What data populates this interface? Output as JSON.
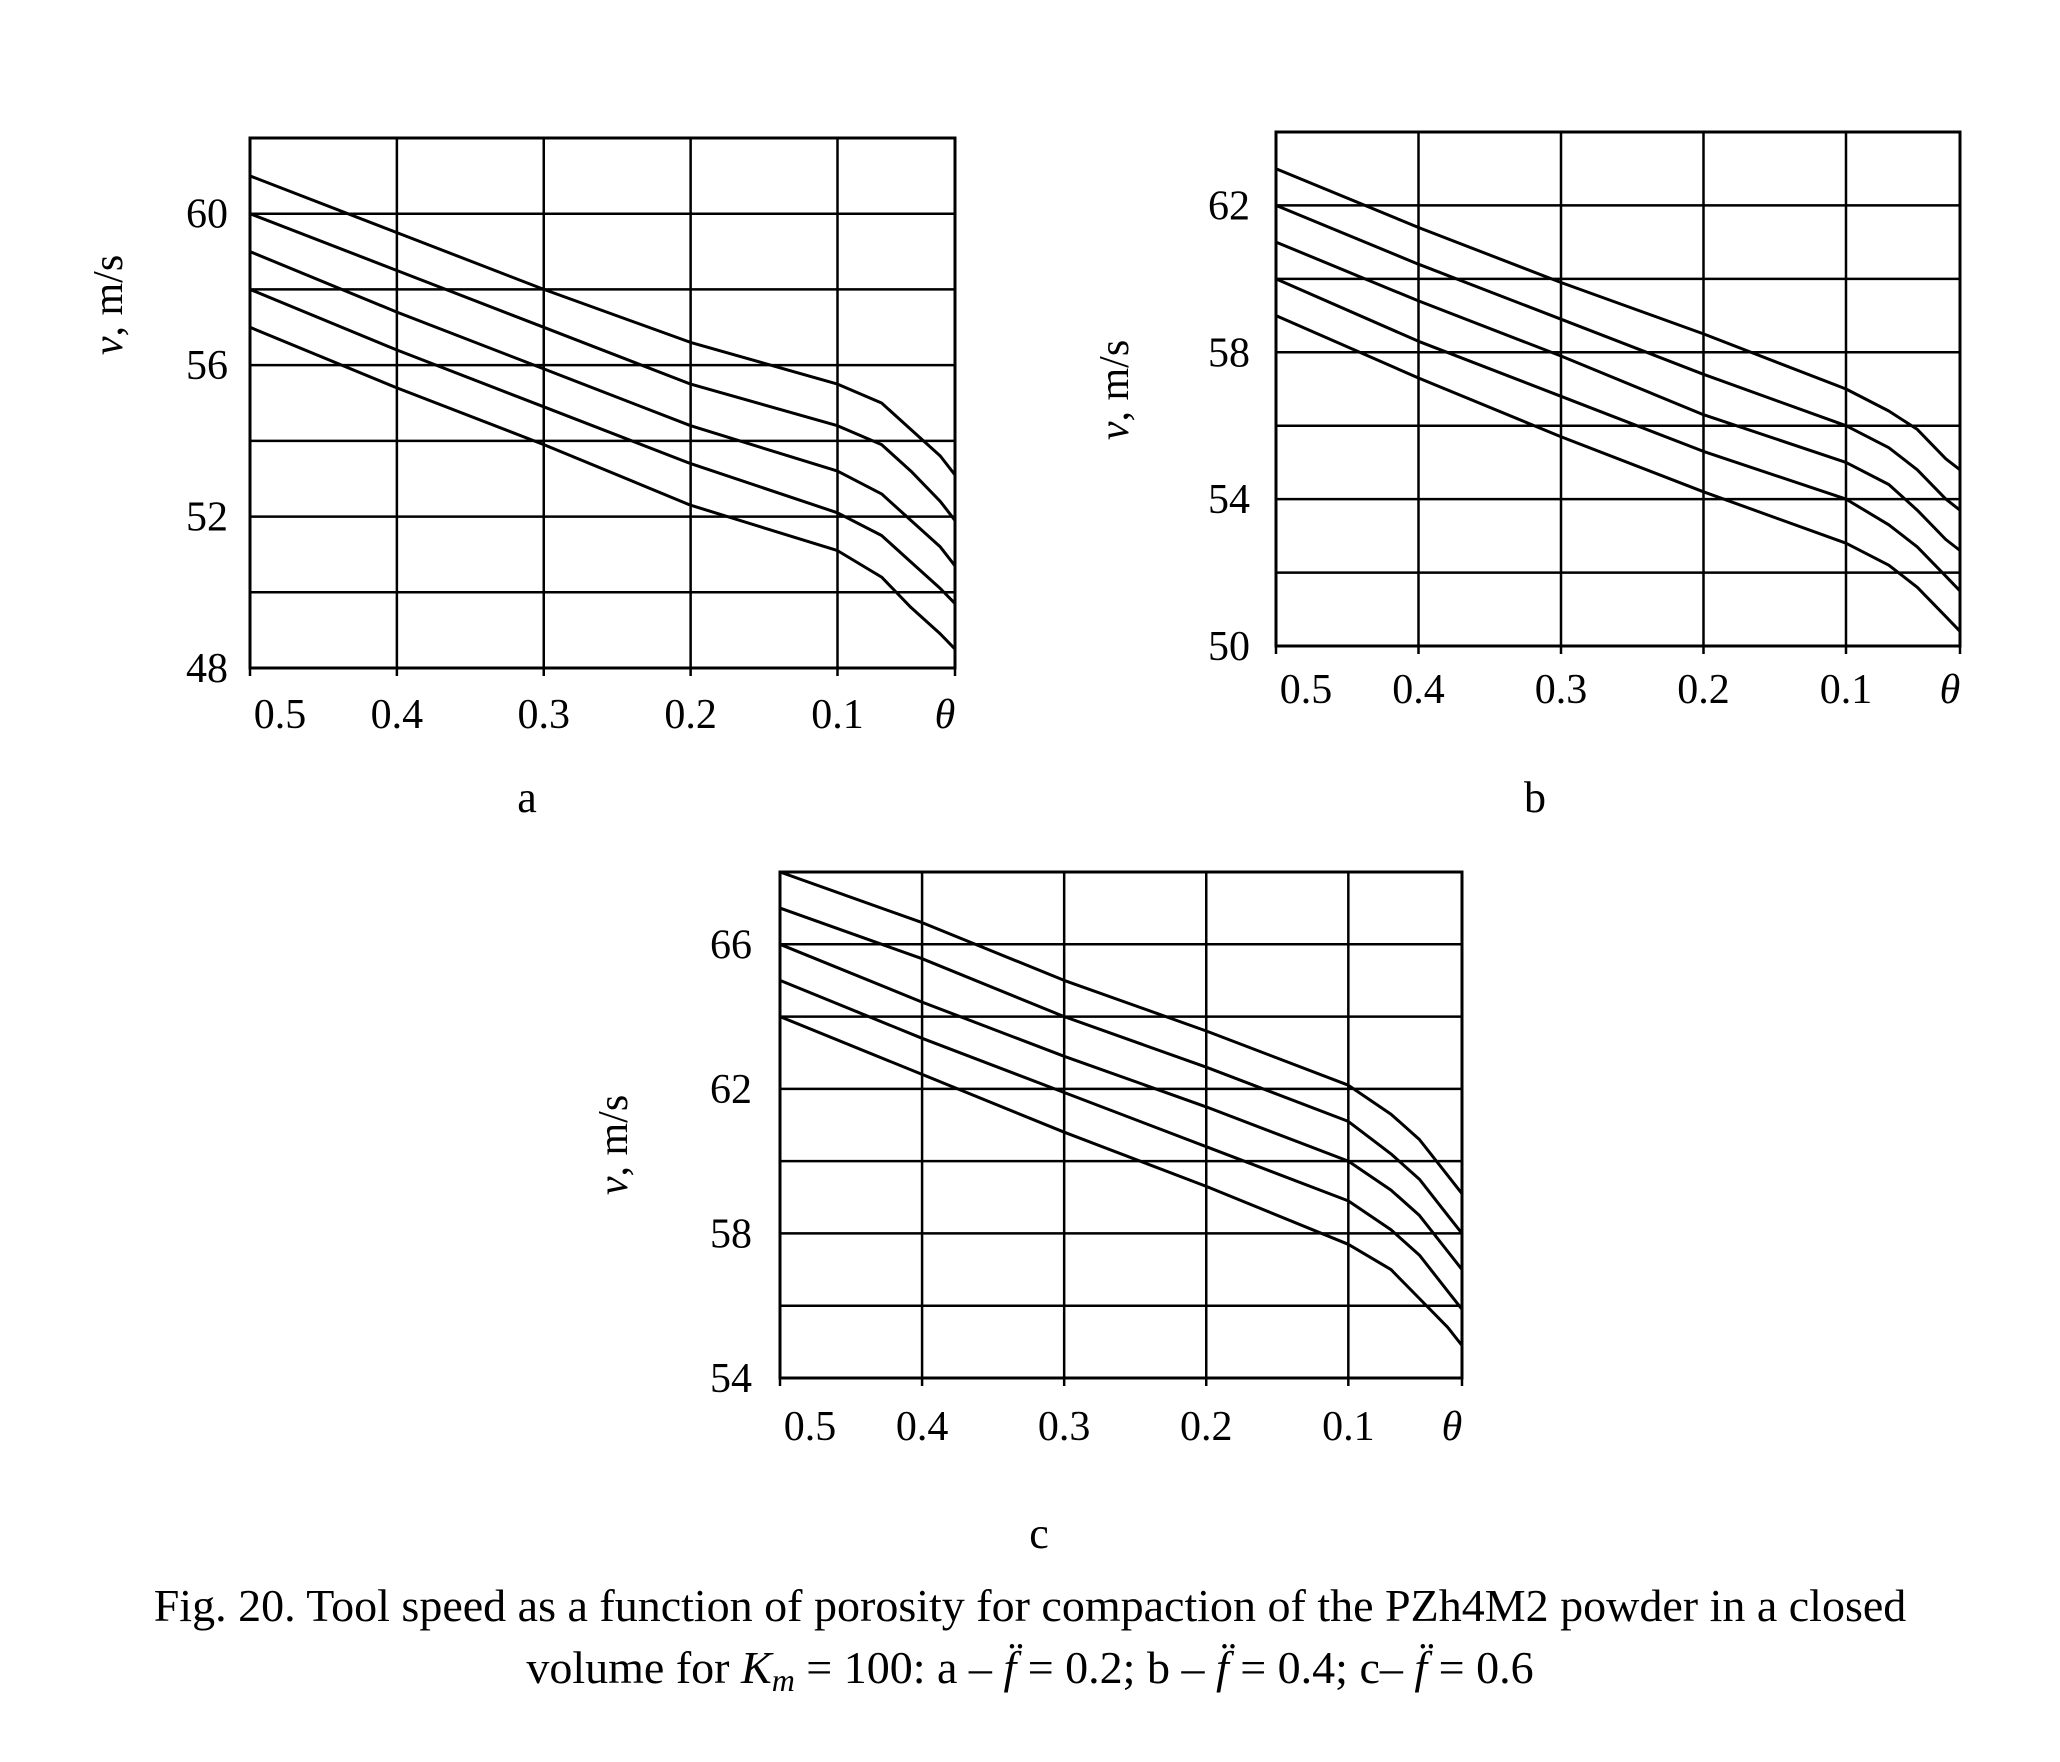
{
  "chart_data": [
    {
      "type": "line",
      "panel_label": "a",
      "xlabel": "θ",
      "ylabel": "v, m/s",
      "xlim": [
        0.5,
        0.0
      ],
      "ylim": [
        48,
        62
      ],
      "x_ticks": [
        "0.5",
        "0.4",
        "0.3",
        "0.2",
        "0.1"
      ],
      "y_ticks": [
        "48",
        "52",
        "56",
        "60"
      ],
      "grid": true,
      "x": [
        0.5,
        0.4,
        0.3,
        0.2,
        0.1,
        0.07,
        0.05,
        0.03,
        0.02
      ],
      "series": [
        {
          "values": [
            61.0,
            59.5,
            58.0,
            56.6,
            55.5,
            55.0,
            54.3,
            53.6,
            53.1
          ]
        },
        {
          "values": [
            60.0,
            58.5,
            57.0,
            55.5,
            54.4,
            53.9,
            53.2,
            52.4,
            51.9
          ]
        },
        {
          "values": [
            59.0,
            57.4,
            55.9,
            54.4,
            53.2,
            52.6,
            51.9,
            51.2,
            50.7
          ]
        },
        {
          "values": [
            58.0,
            56.4,
            54.9,
            53.4,
            52.1,
            51.5,
            50.8,
            50.1,
            49.7
          ]
        },
        {
          "values": [
            57.0,
            55.4,
            53.9,
            52.3,
            51.1,
            50.4,
            49.6,
            48.9,
            48.5
          ]
        }
      ]
    },
    {
      "type": "line",
      "panel_label": "b",
      "xlabel": "θ",
      "ylabel": "v, m/s",
      "xlim": [
        0.5,
        0.0
      ],
      "ylim": [
        50,
        64
      ],
      "x_ticks": [
        "0.5",
        "0.4",
        "0.3",
        "0.2",
        "0.1"
      ],
      "y_ticks": [
        "50",
        "54",
        "58",
        "62"
      ],
      "grid": true,
      "x": [
        0.5,
        0.4,
        0.3,
        0.2,
        0.1,
        0.07,
        0.05,
        0.03,
        0.02
      ],
      "series": [
        {
          "values": [
            63.0,
            61.4,
            59.9,
            58.5,
            57.0,
            56.4,
            55.9,
            55.1,
            54.8
          ]
        },
        {
          "values": [
            62.0,
            60.4,
            58.9,
            57.4,
            56.0,
            55.4,
            54.8,
            54.0,
            53.7
          ]
        },
        {
          "values": [
            61.0,
            59.4,
            57.9,
            56.3,
            55.0,
            54.4,
            53.7,
            52.9,
            52.6
          ]
        },
        {
          "values": [
            60.0,
            58.3,
            56.8,
            55.3,
            54.0,
            53.3,
            52.7,
            51.9,
            51.5
          ]
        },
        {
          "values": [
            59.0,
            57.3,
            55.7,
            54.2,
            52.8,
            52.2,
            51.6,
            50.8,
            50.4
          ]
        }
      ]
    },
    {
      "type": "line",
      "panel_label": "c",
      "xlabel": "θ",
      "ylabel": "v, m/s",
      "xlim": [
        0.5,
        0.0
      ],
      "ylim": [
        54,
        68
      ],
      "x_ticks": [
        "0.5",
        "0.4",
        "0.3",
        "0.2",
        "0.1"
      ],
      "y_ticks": [
        "54",
        "58",
        "62",
        "66"
      ],
      "grid": true,
      "x": [
        0.5,
        0.4,
        0.3,
        0.2,
        0.1,
        0.07,
        0.05,
        0.03,
        0.02
      ],
      "series": [
        {
          "values": [
            68.0,
            66.6,
            65.0,
            63.6,
            62.1,
            61.3,
            60.6,
            59.6,
            59.1
          ]
        },
        {
          "values": [
            67.0,
            65.6,
            64.0,
            62.6,
            61.1,
            60.2,
            59.5,
            58.5,
            58.0
          ]
        },
        {
          "values": [
            66.0,
            64.4,
            62.9,
            61.5,
            60.0,
            59.2,
            58.5,
            57.5,
            57.0
          ]
        },
        {
          "values": [
            65.0,
            63.4,
            61.9,
            60.4,
            58.9,
            58.1,
            57.4,
            56.4,
            55.9
          ]
        },
        {
          "values": [
            64.0,
            62.4,
            60.8,
            59.3,
            57.7,
            57.0,
            56.2,
            55.4,
            54.9
          ]
        }
      ]
    }
  ],
  "caption": {
    "line1": "Fig. 20. Tool speed as a function of porosity for compaction of the PZh4M2 powder in a closed",
    "line2_a": "volume for ",
    "line2_K": "K",
    "line2_m": "m",
    "line2_b": " = 100: a – ",
    "line2_f1": "f̈",
    "line2_c": " = 0.2; b – ",
    "line2_f2": "f̈",
    "line2_d": " = 0.4; c– ",
    "line2_f3": "f̈",
    "line2_e": " = 0.6"
  }
}
